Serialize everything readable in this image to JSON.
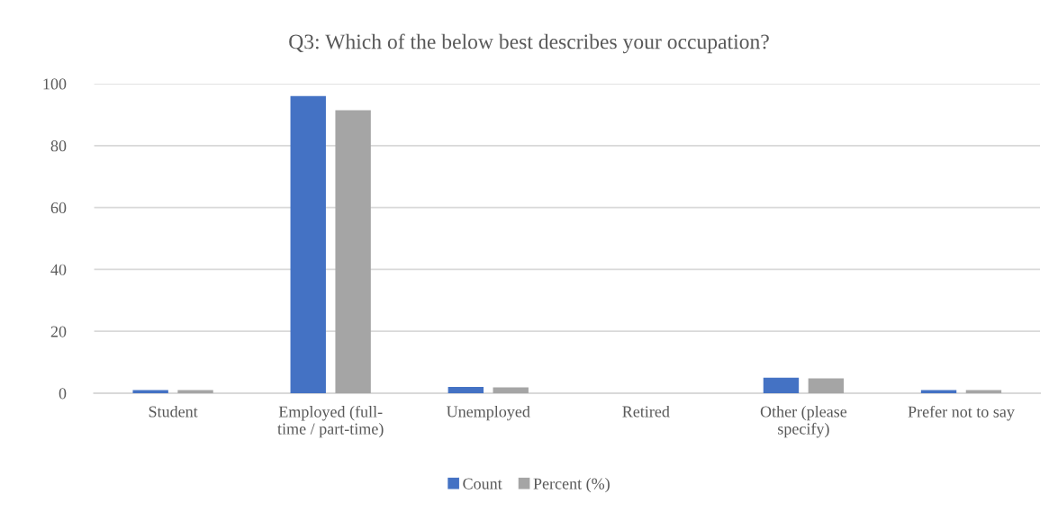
{
  "chart_data": {
    "type": "bar",
    "title": "Q3: Which of the below best describes your occupation?",
    "categories": [
      "Student",
      "Employed (full-\ntime / part-time)",
      "Unemployed",
      "Retired",
      "Other (please\nspecify)",
      "Prefer not to say"
    ],
    "series": [
      {
        "name": "Count",
        "color": "#4472c4",
        "values": [
          1,
          96,
          2,
          0,
          5,
          1
        ]
      },
      {
        "name": "Percent (%)",
        "color": "#a5a5a5",
        "values": [
          1,
          91.4,
          1.9,
          0,
          4.8,
          1
        ]
      }
    ],
    "ylim": [
      0,
      100
    ],
    "yticks": [
      0,
      20,
      40,
      60,
      80,
      100
    ],
    "grid": "y",
    "legend": "bottom"
  }
}
